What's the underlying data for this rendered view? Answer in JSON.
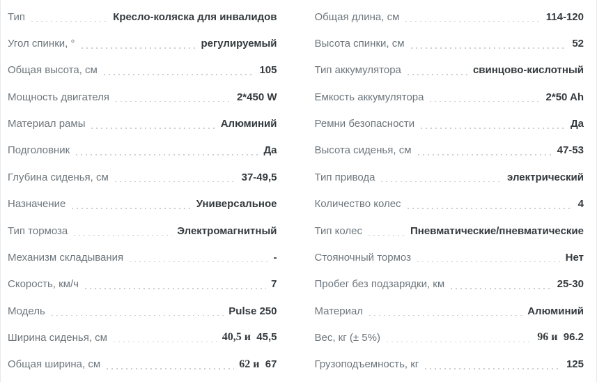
{
  "colors": {
    "background": "#ffffff",
    "label_text": "#6d767c",
    "value_text": "#343a3e",
    "dotted_leader": "#c8ced2",
    "side_border": "#e6e8ea"
  },
  "spec_table": {
    "columns": [
      {
        "rows": [
          {
            "label": "Тип",
            "parts": [
              {
                "t": "Кресло-коляска для инвалидов",
                "serif": false
              }
            ]
          },
          {
            "label": "Угол спинки, °",
            "parts": [
              {
                "t": "регулируемый",
                "serif": false
              }
            ]
          },
          {
            "label": "Общая высота, см",
            "parts": [
              {
                "t": "105",
                "serif": false
              }
            ]
          },
          {
            "label": "Мощность двигателя",
            "parts": [
              {
                "t": "2*450 W",
                "serif": false
              }
            ]
          },
          {
            "label": "Материал рамы",
            "parts": [
              {
                "t": "Алюминий",
                "serif": false
              }
            ]
          },
          {
            "label": "Подголовник",
            "parts": [
              {
                "t": "Да",
                "serif": false
              }
            ]
          },
          {
            "label": "Глубина сиденья, см",
            "parts": [
              {
                "t": "37-49,5",
                "serif": false
              }
            ]
          },
          {
            "label": "Назначение",
            "parts": [
              {
                "t": "Универсальное",
                "serif": false
              }
            ]
          },
          {
            "label": "Тип тормоза",
            "parts": [
              {
                "t": "Электромагнитный",
                "serif": false
              }
            ]
          },
          {
            "label": "Механизм складывания",
            "parts": [
              {
                "t": "-",
                "serif": false
              }
            ]
          },
          {
            "label": "Скорость, км/ч",
            "parts": [
              {
                "t": "7",
                "serif": false
              }
            ]
          },
          {
            "label": "Модель",
            "parts": [
              {
                "t": "Pulse 250",
                "serif": false
              }
            ]
          },
          {
            "label": "Ширина сиденья, см",
            "parts": [
              {
                "t": "40,5 и",
                "serif": true
              },
              {
                "t": "  45,5",
                "serif": false
              }
            ]
          },
          {
            "label": "Общая ширина, см",
            "parts": [
              {
                "t": "62 и",
                "serif": true
              },
              {
                "t": "  67",
                "serif": false
              }
            ]
          }
        ]
      },
      {
        "rows": [
          {
            "label": "Общая длина, см",
            "parts": [
              {
                "t": "114-120",
                "serif": false
              }
            ]
          },
          {
            "label": "Высота спинки, см",
            "parts": [
              {
                "t": "52",
                "serif": false
              }
            ]
          },
          {
            "label": "Тип аккумулятора",
            "parts": [
              {
                "t": "свинцово-кислотный",
                "serif": false
              }
            ]
          },
          {
            "label": "Емкость аккумулятора",
            "parts": [
              {
                "t": "2*50 Ah",
                "serif": false
              }
            ]
          },
          {
            "label": "Ремни безопасности",
            "parts": [
              {
                "t": "Да",
                "serif": false
              }
            ]
          },
          {
            "label": "Высота сиденья, см",
            "parts": [
              {
                "t": "47-53",
                "serif": false
              }
            ]
          },
          {
            "label": "Тип привода",
            "parts": [
              {
                "t": "электрический",
                "serif": false
              }
            ]
          },
          {
            "label": "Количество колес",
            "parts": [
              {
                "t": "4",
                "serif": false
              }
            ]
          },
          {
            "label": "Тип колес",
            "parts": [
              {
                "t": "Пневматические/пневматические",
                "serif": false
              }
            ]
          },
          {
            "label": "Стояночный тормоз",
            "parts": [
              {
                "t": "Нет",
                "serif": false
              }
            ]
          },
          {
            "label": "Пробег без подзарядки, км",
            "parts": [
              {
                "t": "25-30",
                "serif": false
              }
            ]
          },
          {
            "label": "Материал",
            "parts": [
              {
                "t": "Алюминий",
                "serif": false
              }
            ]
          },
          {
            "label": "Вес, кг (± 5%)",
            "parts": [
              {
                "t": "96 и",
                "serif": true
              },
              {
                "t": "  96.2",
                "serif": false
              }
            ]
          },
          {
            "label": "Грузоподъемность, кг",
            "parts": [
              {
                "t": "125",
                "serif": false
              }
            ]
          }
        ]
      }
    ]
  }
}
